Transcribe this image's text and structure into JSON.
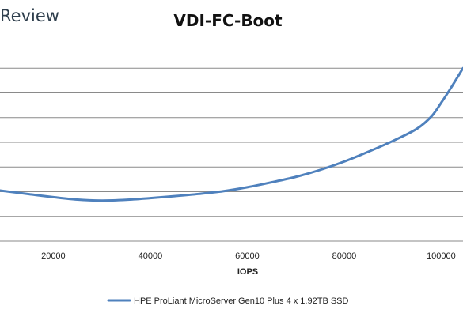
{
  "brand": {
    "text": "Review"
  },
  "colors": {
    "series": "#4f81bd",
    "grid": "#8a8a8a",
    "brand": "#2f3f4d"
  },
  "chart_data": {
    "type": "line",
    "title": "VDI-FC-Boot",
    "xlabel": "IOPS",
    "ylabel": "",
    "xlim": [
      9000,
      104500
    ],
    "ylim": [
      0,
      8
    ],
    "x_ticks": [
      20000,
      40000,
      60000,
      80000,
      100000
    ],
    "grid": true,
    "legend_position": "bottom",
    "series": [
      {
        "name": "HPE ProLiant MicroServer Gen10 Plus 4 x 1.92TB SSD",
        "x": [
          9000,
          15000,
          20000,
          25000,
          30000,
          35000,
          40000,
          45000,
          50000,
          55000,
          60000,
          65000,
          70000,
          75000,
          80000,
          85000,
          90000,
          95000,
          98000,
          100000,
          102000,
          104500
        ],
        "y": [
          2.05,
          1.9,
          1.78,
          1.68,
          1.64,
          1.67,
          1.74,
          1.82,
          1.91,
          2.02,
          2.18,
          2.38,
          2.6,
          2.88,
          3.22,
          3.62,
          4.05,
          4.55,
          5.05,
          5.6,
          6.2,
          7.0
        ]
      }
    ]
  }
}
